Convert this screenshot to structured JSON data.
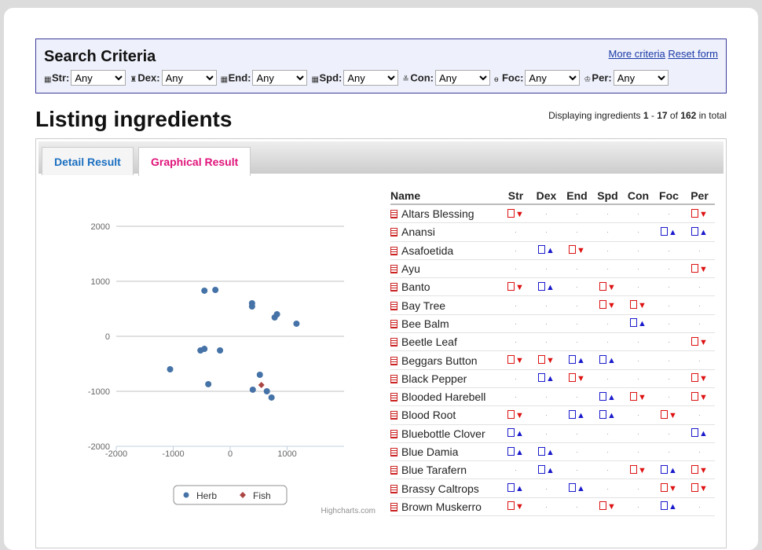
{
  "search": {
    "title": "Search Criteria",
    "links": [
      "More criteria",
      "Reset form"
    ],
    "filters": [
      {
        "label": "Str:",
        "value": "Any"
      },
      {
        "label": "Dex:",
        "value": "Any"
      },
      {
        "label": "End:",
        "value": "Any"
      },
      {
        "label": "Spd:",
        "value": "Any"
      },
      {
        "label": "Con:",
        "value": "Any"
      },
      {
        "label": "Foc:",
        "value": "Any"
      },
      {
        "label": "Per:",
        "value": "Any"
      }
    ]
  },
  "heading": "Listing ingredients",
  "display": [
    "Displaying ingredients ",
    "1",
    " - ",
    "17",
    " of ",
    "162",
    " in total"
  ],
  "tabs": [
    "Detail Result",
    "Graphical Result"
  ],
  "chart_data": {
    "type": "scatter",
    "xlim": [
      -2000,
      2000
    ],
    "xticks": [
      -2000,
      -1000,
      0,
      1000
    ],
    "ylim": [
      -2000,
      2000
    ],
    "yticks": [
      -2000,
      -1000,
      0,
      1000,
      2000
    ],
    "grid": true,
    "credit": "Highcharts.com",
    "legend": "bottom",
    "series": [
      {
        "name": "Herb",
        "color": "#4572a7",
        "x": [
          -452,
          -260,
          384,
          384,
          822,
          781,
          1164,
          -521,
          -452,
          -178,
          -1055,
          521,
          -384,
          397,
          644,
          726
        ],
        "values": [
          829,
          843,
          600,
          543,
          400,
          343,
          229,
          -257,
          -229,
          -257,
          -600,
          -700,
          -871,
          -971,
          -1000,
          -1114
        ]
      },
      {
        "name": "Fish",
        "color": "#aa4643",
        "x": [
          548
        ],
        "values": [
          -886
        ]
      }
    ]
  },
  "table": {
    "headers": [
      "Name",
      "Str",
      "Dex",
      "End",
      "Spd",
      "Con",
      "Foc",
      "Per"
    ],
    "rows": [
      [
        "Altars Blessing",
        "▼",
        "·",
        "·",
        "·",
        "·",
        "·",
        "▼"
      ],
      [
        "Anansi",
        "·",
        "·",
        "·",
        "·",
        "·",
        "▲",
        "▲"
      ],
      [
        "Asafoetida",
        "·",
        "▲",
        "▼",
        "·",
        "·",
        "·",
        "·"
      ],
      [
        "Ayu",
        "·",
        "·",
        "·",
        "·",
        "·",
        "·",
        "▼"
      ],
      [
        "Banto",
        "▼",
        "▲",
        "·",
        "▼",
        "·",
        "·",
        "·"
      ],
      [
        "Bay Tree",
        "·",
        "·",
        "·",
        "▼",
        "▼",
        "·",
        "·"
      ],
      [
        "Bee Balm",
        "·",
        "·",
        "·",
        "·",
        "▲",
        "·",
        "·"
      ],
      [
        "Beetle Leaf",
        "·",
        "·",
        "·",
        "·",
        "·",
        "·",
        "▼"
      ],
      [
        "Beggars Button",
        "▼",
        "▼",
        "▲",
        "▲",
        "·",
        "·",
        "·"
      ],
      [
        "Black Pepper",
        "·",
        "▲",
        "▼",
        "·",
        "·",
        "·",
        "▼"
      ],
      [
        "Blooded Harebell",
        "·",
        "·",
        "·",
        "▲",
        "▼",
        "·",
        "▼"
      ],
      [
        "Blood Root",
        "▼",
        "·",
        "▲",
        "▲",
        "·",
        "▼",
        "·"
      ],
      [
        "Bluebottle Clover",
        "▲",
        "·",
        "·",
        "·",
        "·",
        "·",
        "▲"
      ],
      [
        "Blue Damia",
        "▲",
        "▲",
        "·",
        "·",
        "·",
        "·",
        "·"
      ],
      [
        "Blue Tarafern",
        "·",
        "▲",
        "·",
        "·",
        "▼",
        "▲",
        "▼"
      ],
      [
        "Brassy Caltrops",
        "▲",
        "·",
        "▲",
        "·",
        "·",
        "▼",
        "▼"
      ],
      [
        "Brown Muskerro",
        "▼",
        "·",
        "·",
        "▼",
        "·",
        "▲",
        "·"
      ]
    ]
  }
}
